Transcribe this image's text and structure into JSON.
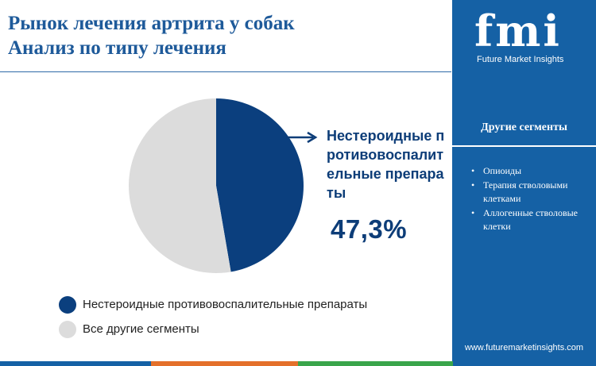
{
  "title": {
    "line1": "Рынок лечения артрита у собак",
    "line2": "Анализ по типу лечения"
  },
  "chart_data": {
    "type": "pie",
    "title": "",
    "slices": [
      {
        "label": "Нестероидные противовоспалительные препараты",
        "value": 47.3,
        "color": "#0b3f7e"
      },
      {
        "label": "Все другие сегменты",
        "value": 52.7,
        "color": "#dcdcdc"
      }
    ]
  },
  "callout": {
    "label": "Нестероидные противовоспалительные препараты",
    "value": "47,3%"
  },
  "legend": [
    {
      "label": "Нестероидные противовоспалительные препараты",
      "color": "#0b3f7e"
    },
    {
      "label": "Все другие сегменты",
      "color": "#dcdcdc"
    }
  ],
  "sidebar": {
    "logo_letters": "fmi",
    "logo_tagline": "Future Market Insights",
    "heading": "Другие сегменты",
    "items": [
      "Опиоиды",
      "Терапия стволовыми клетками",
      "Аллогенные стволовые клетки"
    ],
    "website": "www.futuremarketinsights.com"
  },
  "colors": {
    "brand_blue": "#1561a5",
    "title_blue": "#1e5a9a",
    "dark_navy": "#0d3d78",
    "bottom_bar": [
      "#1561a5",
      "#e4702a",
      "#3aa54b",
      "#1561a5"
    ]
  }
}
